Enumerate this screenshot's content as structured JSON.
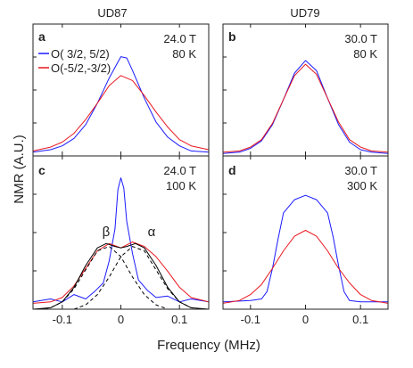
{
  "figure": {
    "column_titles": [
      "UD87",
      "UD79"
    ],
    "ylabel": "NMR (A.U.)",
    "xlabel": "Frequency (MHz)",
    "colors": {
      "blue": "#1a1aff",
      "red": "#e8171f",
      "black": "#000000"
    }
  },
  "chart_data": [
    {
      "type": "line",
      "panel": "a",
      "label": "a",
      "column": "UD87",
      "conditions": [
        "24.0 T",
        "80 K"
      ],
      "legend": [
        "O( 3/2,  5/2)",
        "O(-5/2,-3/2)"
      ],
      "legend_placement": "top-left",
      "xlim": [
        -0.15,
        0.15
      ],
      "xticks": [
        -0.1,
        0,
        0.1
      ],
      "xtick_labels": [],
      "ylim": [
        0,
        1.05
      ],
      "series": [
        {
          "name": "O( 3/2,  5/2)",
          "color": "#1a1aff",
          "x": [
            -0.15,
            -0.12,
            -0.1,
            -0.08,
            -0.06,
            -0.04,
            -0.02,
            0,
            0.01,
            0.02,
            0.04,
            0.06,
            0.08,
            0.1,
            0.12,
            0.15
          ],
          "y": [
            0.03,
            0.05,
            0.08,
            0.14,
            0.25,
            0.42,
            0.62,
            0.79,
            0.78,
            0.68,
            0.46,
            0.27,
            0.15,
            0.08,
            0.04,
            0.03
          ]
        },
        {
          "name": "O(-5/2,-3/2)",
          "color": "#e8171f",
          "x": [
            -0.15,
            -0.12,
            -0.1,
            -0.08,
            -0.06,
            -0.04,
            -0.02,
            0,
            0.02,
            0.04,
            0.06,
            0.08,
            0.1,
            0.12,
            0.15
          ],
          "y": [
            0.04,
            0.07,
            0.11,
            0.18,
            0.29,
            0.42,
            0.56,
            0.64,
            0.6,
            0.48,
            0.35,
            0.23,
            0.13,
            0.08,
            0.05
          ]
        }
      ]
    },
    {
      "type": "line",
      "panel": "b",
      "label": "b",
      "column": "UD79",
      "conditions": [
        "30.0 T",
        "80 K"
      ],
      "xlim": [
        -0.15,
        0.15
      ],
      "xticks": [
        -0.1,
        0,
        0.1
      ],
      "xtick_labels": [],
      "ylim": [
        0,
        1.05
      ],
      "series": [
        {
          "color": "#1a1aff",
          "x": [
            -0.15,
            -0.12,
            -0.1,
            -0.08,
            -0.06,
            -0.04,
            -0.02,
            0,
            0.02,
            0.04,
            0.06,
            0.08,
            0.1,
            0.12,
            0.15
          ],
          "y": [
            0.02,
            0.03,
            0.06,
            0.12,
            0.25,
            0.45,
            0.66,
            0.76,
            0.68,
            0.46,
            0.25,
            0.11,
            0.05,
            0.03,
            0.02
          ]
        },
        {
          "color": "#e8171f",
          "x": [
            -0.15,
            -0.12,
            -0.1,
            -0.08,
            -0.06,
            -0.04,
            -0.02,
            0,
            0.02,
            0.04,
            0.06,
            0.08,
            0.1,
            0.12,
            0.15
          ],
          "y": [
            0.03,
            0.04,
            0.07,
            0.13,
            0.26,
            0.45,
            0.64,
            0.73,
            0.65,
            0.46,
            0.27,
            0.13,
            0.07,
            0.04,
            0.03
          ]
        }
      ]
    },
    {
      "type": "line",
      "panel": "c",
      "label": "c",
      "column": "UD87",
      "conditions": [
        "24.0 T",
        "100 K"
      ],
      "annotations": [
        "β",
        "α"
      ],
      "xlim": [
        -0.15,
        0.15
      ],
      "xticks": [
        -0.1,
        0,
        0.1
      ],
      "xtick_labels": [
        "-0.1",
        "0",
        "0.1"
      ],
      "ylim": [
        0,
        1.05
      ],
      "series": [
        {
          "color": "#1a1aff",
          "x": [
            -0.15,
            -0.12,
            -0.1,
            -0.08,
            -0.06,
            -0.045,
            -0.03,
            -0.02,
            -0.01,
            -0.005,
            0,
            0.005,
            0.01,
            0.02,
            0.03,
            0.045,
            0.06,
            0.08,
            0.1,
            0.12,
            0.15
          ],
          "y": [
            0.05,
            0.07,
            0.05,
            0.1,
            0.07,
            0.12,
            0.18,
            0.33,
            0.55,
            0.82,
            0.9,
            0.83,
            0.6,
            0.38,
            0.2,
            0.13,
            0.08,
            0.09,
            0.05,
            0.07,
            0.05
          ]
        },
        {
          "color": "#e8171f",
          "x": [
            -0.15,
            -0.12,
            -0.1,
            -0.08,
            -0.06,
            -0.04,
            -0.02,
            0,
            0.02,
            0.04,
            0.06,
            0.08,
            0.1,
            0.12,
            0.15
          ],
          "y": [
            0.04,
            0.05,
            0.08,
            0.16,
            0.28,
            0.4,
            0.45,
            0.42,
            0.46,
            0.43,
            0.36,
            0.26,
            0.15,
            0.08,
            0.05
          ]
        },
        {
          "color": "#000000",
          "style": "solid",
          "x": [
            -0.15,
            -0.12,
            -0.1,
            -0.08,
            -0.06,
            -0.04,
            -0.025,
            -0.01,
            0,
            0.01,
            0.025,
            0.04,
            0.06,
            0.08,
            0.1,
            0.12,
            0.15
          ],
          "y": [
            0.0,
            0.01,
            0.05,
            0.15,
            0.3,
            0.42,
            0.45,
            0.43,
            0.42,
            0.43,
            0.45,
            0.42,
            0.3,
            0.15,
            0.05,
            0.01,
            0.0
          ]
        },
        {
          "color": "#000000",
          "style": "dashed",
          "x": [
            -0.14,
            -0.12,
            -0.1,
            -0.08,
            -0.06,
            -0.04,
            -0.02,
            0,
            0.02,
            0.04,
            0.06,
            0.08
          ],
          "y": [
            0.0,
            0.01,
            0.05,
            0.14,
            0.27,
            0.4,
            0.43,
            0.36,
            0.22,
            0.1,
            0.03,
            0.0
          ]
        },
        {
          "color": "#000000",
          "style": "dashed",
          "x": [
            -0.08,
            -0.06,
            -0.04,
            -0.02,
            0,
            0.02,
            0.04,
            0.06,
            0.08,
            0.1,
            0.12,
            0.14
          ],
          "y": [
            0.0,
            0.03,
            0.1,
            0.22,
            0.36,
            0.43,
            0.4,
            0.27,
            0.14,
            0.05,
            0.01,
            0.0
          ]
        }
      ]
    },
    {
      "type": "line",
      "panel": "d",
      "label": "d",
      "column": "UD79",
      "conditions": [
        "30.0 T",
        "300 K"
      ],
      "xlim": [
        -0.15,
        0.15
      ],
      "xticks": [
        -0.1,
        0,
        0.1
      ],
      "xtick_labels": [
        "-0.1",
        "0",
        "0.1"
      ],
      "ylim": [
        0,
        1.05
      ],
      "series": [
        {
          "color": "#1a1aff",
          "x": [
            -0.15,
            -0.1,
            -0.08,
            -0.07,
            -0.06,
            -0.05,
            -0.04,
            -0.02,
            0,
            0.02,
            0.04,
            0.05,
            0.06,
            0.07,
            0.08,
            0.1,
            0.15
          ],
          "y": [
            0.05,
            0.06,
            0.07,
            0.12,
            0.28,
            0.48,
            0.66,
            0.75,
            0.78,
            0.75,
            0.66,
            0.5,
            0.3,
            0.12,
            0.06,
            0.05,
            0.05
          ]
        },
        {
          "color": "#e8171f",
          "x": [
            -0.15,
            -0.12,
            -0.1,
            -0.08,
            -0.06,
            -0.04,
            -0.02,
            0,
            0.02,
            0.04,
            0.06,
            0.08,
            0.1,
            0.12,
            0.15
          ],
          "y": [
            0.04,
            0.06,
            0.1,
            0.17,
            0.28,
            0.4,
            0.5,
            0.54,
            0.5,
            0.4,
            0.28,
            0.18,
            0.1,
            0.06,
            0.04
          ]
        }
      ]
    }
  ]
}
